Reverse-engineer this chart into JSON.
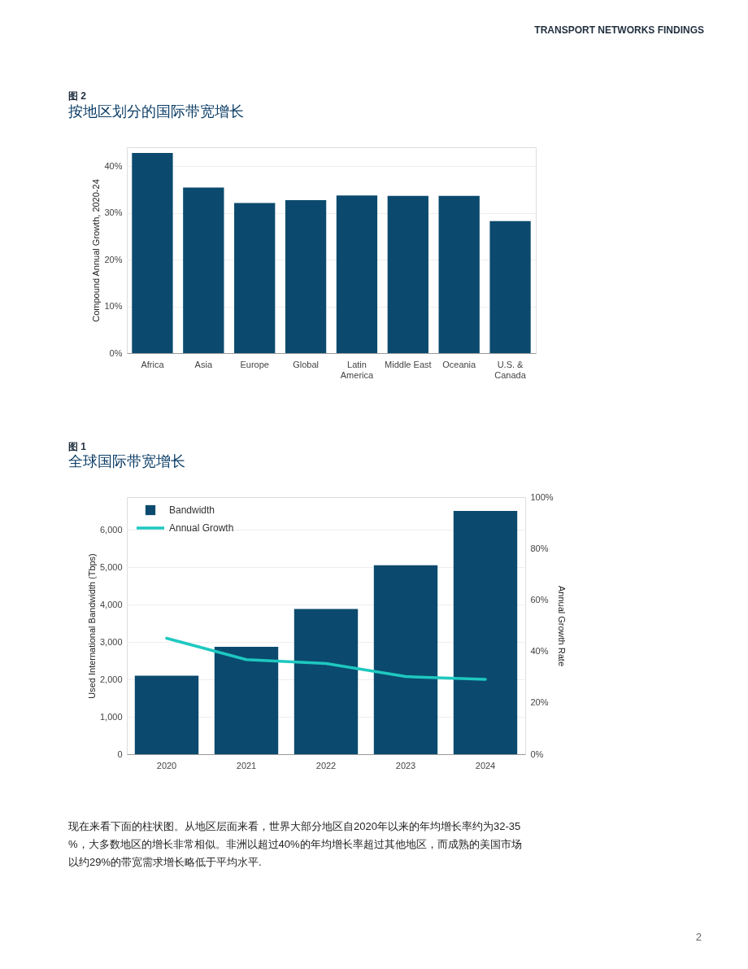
{
  "chart_data": [
    {
      "type": "bar",
      "title": "按地区划分的国际带宽增长",
      "ylabel": "Compound Annual Growth, 2020-24",
      "categories": [
        "Africa",
        "Asia",
        "Europe",
        "Global",
        "Latin\nAmerica",
        "Middle East",
        "Oceania",
        "U.S. &\nCanada"
      ],
      "values": [
        42.8,
        35.4,
        32.1,
        32.7,
        33.7,
        33.6,
        33.6,
        28.2
      ],
      "color": "#0b4a6e",
      "ylim": [
        0,
        44
      ],
      "yticks": [
        {
          "value": 0,
          "label": "0%"
        },
        {
          "value": 10,
          "label": "10%"
        },
        {
          "value": 20,
          "label": "20%"
        },
        {
          "value": 30,
          "label": "30%"
        },
        {
          "value": 40,
          "label": "40%"
        }
      ],
      "grid": "y",
      "annotations": [
        "TRANSPORT NETWORKS FINDINGS",
        "图 2"
      ]
    },
    {
      "type": "bar",
      "title": "全球国际带宽增长",
      "ylabel": "Used International Bandwidth (Tbps)",
      "y2label": "Annual Growth Rate",
      "categories": [
        "2020",
        "2021",
        "2022",
        "2023",
        "2024"
      ],
      "series": [
        {
          "name": "Bandwidth",
          "type": "bar",
          "color": "#0b4a6e",
          "values": [
            2100,
            2870,
            3880,
            5050,
            6500
          ]
        },
        {
          "name": "Annual Growth",
          "type": "line",
          "axis": "y2",
          "color": "#1ec8c0",
          "values": [
            45.1,
            36.8,
            35.3,
            30.2,
            29.1
          ]
        }
      ],
      "ylim": [
        0,
        6870
      ],
      "yticks": [
        0,
        {
          "value": 1000,
          "label": "1,000"
        },
        {
          "value": 2000,
          "label": "2,000"
        },
        {
          "value": 3000,
          "label": "3,000"
        },
        {
          "value": 4000,
          "label": "4,000"
        },
        {
          "value": 5000,
          "label": "5,000"
        },
        {
          "value": 6000,
          "label": "6,000"
        }
      ],
      "y2lim": [
        0,
        100
      ],
      "y2ticks": [
        {
          "value": 0,
          "label": "0%"
        },
        {
          "value": 20,
          "label": "20%"
        },
        {
          "value": 40,
          "label": "40%"
        },
        {
          "value": 60,
          "label": "60%"
        },
        {
          "value": 80,
          "label": "80%"
        },
        {
          "value": 100,
          "label": "100%"
        }
      ],
      "grid": "y",
      "legend": "top left",
      "annotations": [
        "图 1",
        "现在来看下面的柱状图。从地区层面来看，世界大部分地区自2020年以来的年均增长率约为32-35",
        "%，大多数地区的增长非常相似。非洲以超过40%的年均增长率超过其他地区，而成熟的美国市场",
        "以约29%的带宽需求增长略低于平均水平.",
        "2"
      ]
    }
  ]
}
